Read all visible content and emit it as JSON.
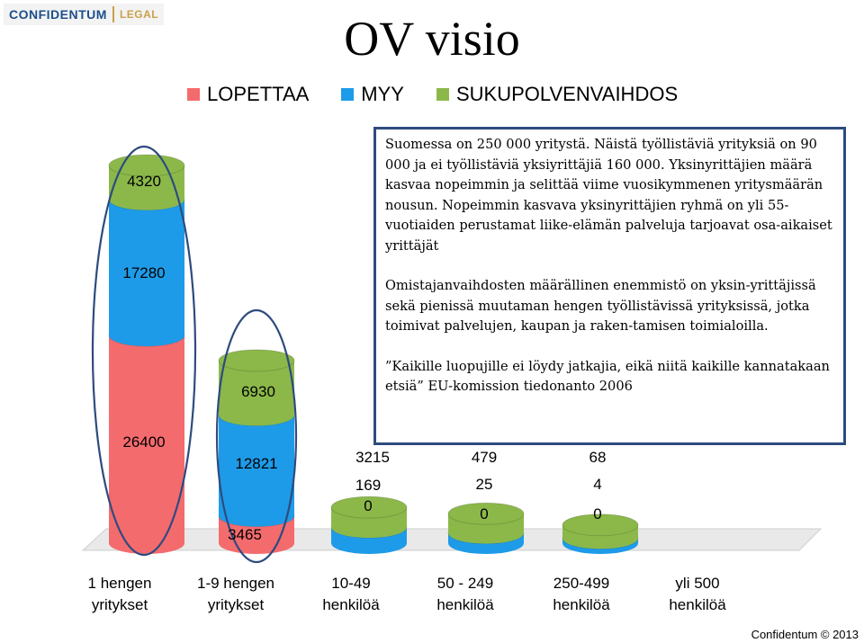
{
  "logo": {
    "main": "CONFIDENTUM",
    "sub": "LEGAL"
  },
  "title": "OV visio",
  "legend": [
    {
      "label": "LOPETTAA",
      "color": "#f46b6e"
    },
    {
      "label": "MYY",
      "color": "#1e9be8"
    },
    {
      "label": "SUKUPOLVENVAIHDOS",
      "color": "#8cb84a"
    }
  ],
  "textbox": {
    "p1": "Suomessa on 250 000 yritystä. Näistä työllistäviä yrityksiä on 90 000 ja ei työllistäviä yksiyrittäjiä 160 000. Yksinyrittäjien määrä kasvaa nopeimmin ja selittää viime vuosikymmenen yritysmäärän nousun. Nopeimmin kasvava yksinyrittäjien ryhmä on yli 55-vuotiaiden perustamat liike-elämän palveluja tarjoavat osa-aikaiset yrittäjät",
    "p2": "Omistajanvaihdosten määrällinen enemmistö on yksin-yrittäjissä sekä pienissä muutaman hengen työllistävissä yrityksissä, jotka toimivat palvelujen, kaupan ja raken-tamisen toimialoilla.",
    "p3": "”Kaikille luopujille ei löydy jatkajia, eikä niitä kaikille kannatakaan etsiä” EU-komission tiedonanto 2006"
  },
  "chart_data": {
    "type": "bar",
    "stacked": true,
    "categories": [
      "1 hengen\nyritykset",
      "1-9 hengen\nyritykset",
      "10-49\nhenkilöä",
      "50 - 249\nhenkilöä",
      "250-499\nhenkilöä",
      "yli 500\nhenkilöä"
    ],
    "series": [
      {
        "name": "LOPETTAA",
        "values": [
          26400,
          3465,
          0,
          0,
          0,
          null
        ]
      },
      {
        "name": "MYY",
        "values": [
          17280,
          12821,
          169,
          25,
          4,
          null
        ]
      },
      {
        "name": "SUKUPOLVENVAIHDOS",
        "values": [
          4320,
          6930,
          3215,
          479,
          68,
          null
        ]
      }
    ],
    "value_labels": [
      [
        "26400",
        "17280",
        "4320"
      ],
      [
        "3465",
        "12821",
        "6930"
      ],
      [
        "0",
        "169",
        "3215"
      ],
      [
        "0",
        "25",
        "479"
      ],
      [
        "0",
        "4",
        "68"
      ],
      []
    ],
    "colors": {
      "LOPETTAA": "#f46b6e",
      "MYY": "#1e9be8",
      "SUKUPOLVENVAIHDOS": "#8cb84a",
      "outline": "#2e4b7e",
      "floor": "#e9e9e9"
    },
    "highlighted_categories": [
      0,
      1
    ],
    "legend_position": "top",
    "grid": false
  },
  "footer": "Confidentum © 2013"
}
